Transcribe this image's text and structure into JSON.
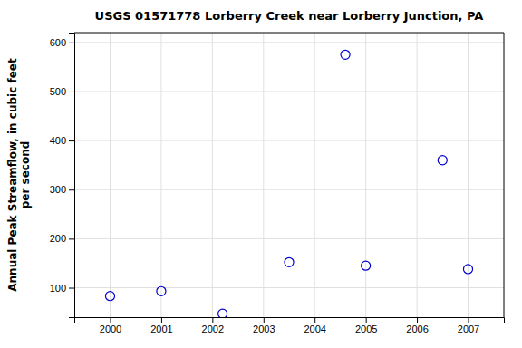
{
  "chart_data": {
    "type": "scatter",
    "title": "USGS 01571778 Lorberry Creek near Lorberry Junction, PA",
    "ylabel": "Annual Peak Streamflow, in cubic feet\nper second",
    "x": [
      2000,
      2001,
      2002.2,
      2003.5,
      2004.6,
      2005,
      2006.5,
      2007
    ],
    "values": [
      83,
      93,
      47,
      152,
      575,
      145,
      360,
      138
    ],
    "xlim": [
      1999.3,
      2007.7
    ],
    "ylim": [
      40,
      620
    ],
    "xticks": [
      2000,
      2001,
      2002,
      2003,
      2004,
      2005,
      2006,
      2007
    ],
    "yticks": [
      100,
      200,
      300,
      400,
      500,
      600
    ],
    "color": "#0000CC",
    "marker": "circle",
    "grid": true
  }
}
